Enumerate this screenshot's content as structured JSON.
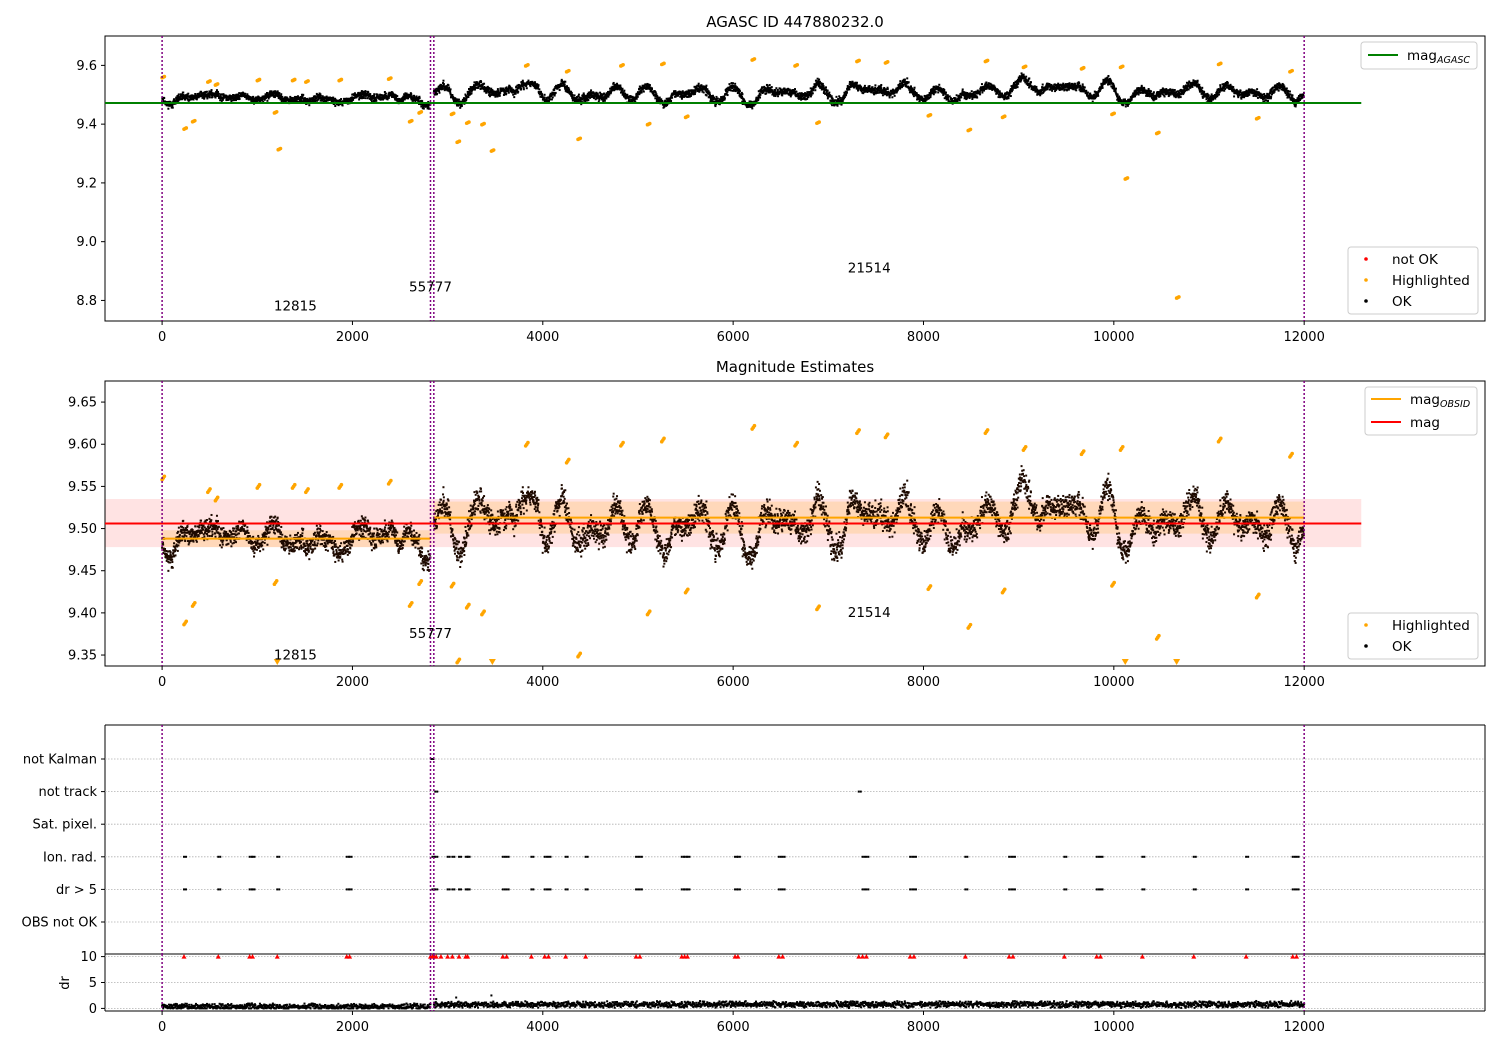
{
  "chart_data": [
    {
      "type": "scatter",
      "title": "AGASC ID 447880232.0",
      "xlim": [
        -600,
        13900
      ],
      "ylim": [
        8.73,
        9.7
      ],
      "xticks": [
        0,
        2000,
        4000,
        6000,
        8000,
        10000,
        12000
      ],
      "yticks": [
        8.8,
        9.0,
        9.2,
        9.4,
        9.6
      ],
      "ytick_labels": [
        "8.8",
        "9.0",
        "9.2",
        "9.4",
        "9.6"
      ],
      "vlines": [
        0,
        2820,
        2855,
        12000
      ],
      "hline": {
        "label": "mag",
        "label_sub": "AGASC",
        "y": 9.472,
        "x_range": [
          -600,
          12600
        ],
        "color": "#008000"
      },
      "segments": [
        {
          "x0": 0,
          "x1": 2820,
          "mean": 9.487,
          "amp": 0.009,
          "noise": 0.011,
          "seed": 11
        },
        {
          "x0": 2855,
          "x1": 12000,
          "mean": 9.512,
          "amp": 0.03,
          "noise": 0.013,
          "seed": 23
        }
      ],
      "highlighted": [
        [
          0,
          9.56
        ],
        [
          230,
          9.385
        ],
        [
          320,
          9.41
        ],
        [
          480,
          9.545
        ],
        [
          560,
          9.535
        ],
        [
          1000,
          9.55
        ],
        [
          1180,
          9.44
        ],
        [
          1220,
          9.315
        ],
        [
          1370,
          9.55
        ],
        [
          1510,
          9.545
        ],
        [
          1860,
          9.55
        ],
        [
          2380,
          9.555
        ],
        [
          2600,
          9.41
        ],
        [
          2700,
          9.44
        ],
        [
          3040,
          9.435
        ],
        [
          3100,
          9.34
        ],
        [
          3200,
          9.405
        ],
        [
          3360,
          9.4
        ],
        [
          3460,
          9.31
        ],
        [
          3820,
          9.6
        ],
        [
          4250,
          9.58
        ],
        [
          4370,
          9.35
        ],
        [
          4820,
          9.6
        ],
        [
          5100,
          9.4
        ],
        [
          5250,
          9.605
        ],
        [
          5500,
          9.425
        ],
        [
          6200,
          9.62
        ],
        [
          6650,
          9.6
        ],
        [
          6880,
          9.405
        ],
        [
          7300,
          9.615
        ],
        [
          7600,
          9.61
        ],
        [
          8050,
          9.43
        ],
        [
          8470,
          9.38
        ],
        [
          8650,
          9.615
        ],
        [
          8830,
          9.425
        ],
        [
          9050,
          9.595
        ],
        [
          9660,
          9.59
        ],
        [
          9980,
          9.435
        ],
        [
          10070,
          9.595
        ],
        [
          10120,
          9.215
        ],
        [
          10450,
          9.37
        ],
        [
          10660,
          8.81
        ],
        [
          11100,
          9.605
        ],
        [
          11500,
          9.42
        ],
        [
          11850,
          9.58
        ]
      ],
      "annotations": [
        {
          "text": "12815",
          "x": 1400,
          "y": 8.765
        },
        {
          "text": "55777",
          "x": 2820,
          "y": 8.83
        },
        {
          "text": "21514",
          "x": 7430,
          "y": 8.895
        }
      ],
      "legend_items": [
        "not OK",
        "Highlighted",
        "OK"
      ],
      "series_colors": {
        "ok": "#000000",
        "highlighted": "#ffa500",
        "not_ok": "#ff0000",
        "vline": "#800080"
      }
    },
    {
      "type": "scatter",
      "title": "Magnitude Estimates",
      "xlim": [
        -600,
        13900
      ],
      "ylim": [
        9.337,
        9.675
      ],
      "xticks": [
        0,
        2000,
        4000,
        6000,
        8000,
        10000,
        12000
      ],
      "yticks": [
        9.35,
        9.4,
        9.45,
        9.5,
        9.55,
        9.6,
        9.65
      ],
      "ytick_labels": [
        "9.35",
        "9.40",
        "9.45",
        "9.50",
        "9.55",
        "9.60",
        "9.65"
      ],
      "vlines": [
        0,
        2820,
        2855,
        12000
      ],
      "mag_line": {
        "label": "mag",
        "y": 9.506,
        "band": [
          9.478,
          9.535
        ],
        "x_range": [
          -600,
          12600
        ],
        "color": "#ff0000"
      },
      "obsid_lines": {
        "label": "mag",
        "label_sub": "OBSID",
        "color": "#ffa500",
        "segments": [
          {
            "x0": 0,
            "x1": 2820,
            "y": 9.488,
            "band": [
              9.478,
              9.498
            ]
          },
          {
            "x0": 2855,
            "x1": 12000,
            "y": 9.513,
            "band": [
              9.494,
              9.532
            ]
          }
        ]
      },
      "highlighted": [
        [
          0,
          9.56
        ],
        [
          230,
          9.388
        ],
        [
          320,
          9.41
        ],
        [
          480,
          9.545
        ],
        [
          560,
          9.535
        ],
        [
          1000,
          9.55
        ],
        [
          1180,
          9.436
        ],
        [
          1370,
          9.55
        ],
        [
          1510,
          9.545
        ],
        [
          1860,
          9.55
        ],
        [
          2380,
          9.555
        ],
        [
          2600,
          9.41
        ],
        [
          2700,
          9.436
        ],
        [
          3040,
          9.433
        ],
        [
          3100,
          9.343
        ],
        [
          3200,
          9.408
        ],
        [
          3360,
          9.4
        ],
        [
          3820,
          9.6
        ],
        [
          4250,
          9.58
        ],
        [
          4370,
          9.35
        ],
        [
          4820,
          9.6
        ],
        [
          5100,
          9.4
        ],
        [
          5250,
          9.605
        ],
        [
          5500,
          9.426
        ],
        [
          6200,
          9.62
        ],
        [
          6650,
          9.6
        ],
        [
          6880,
          9.406
        ],
        [
          7300,
          9.615
        ],
        [
          7600,
          9.61
        ],
        [
          8050,
          9.43
        ],
        [
          8470,
          9.384
        ],
        [
          8650,
          9.615
        ],
        [
          8830,
          9.426
        ],
        [
          9050,
          9.595
        ],
        [
          9660,
          9.59
        ],
        [
          9980,
          9.434
        ],
        [
          10070,
          9.595
        ],
        [
          10450,
          9.371
        ],
        [
          11100,
          9.605
        ],
        [
          11500,
          9.42
        ],
        [
          11850,
          9.587
        ]
      ],
      "offscale_markers": [
        1210,
        3470,
        10120,
        10660
      ],
      "annotations": [
        {
          "text": "12815",
          "x": 1400,
          "y": 9.345
        },
        {
          "text": "55777",
          "x": 2820,
          "y": 9.37
        },
        {
          "text": "21514",
          "x": 7430,
          "y": 9.395
        }
      ],
      "legend_lines": [
        "mag",
        "mag"
      ],
      "legend_points": [
        "Highlighted",
        "OK"
      ]
    },
    {
      "type": "scatter",
      "title": "",
      "xlim": [
        -600,
        13900
      ],
      "categories": [
        "not Kalman",
        "not track",
        "Sat. pixel.",
        "Ion. rad.",
        "dr > 5",
        "OBS not OK"
      ],
      "vlines": [
        0,
        2820,
        2855,
        12000
      ],
      "flag_points": {
        "not Kalman": [
          2830
        ],
        "not track": [
          2870,
          7320
        ],
        "Sat. pixel.": [],
        "Ion. rad.": [
          230,
          590,
          920,
          950,
          1210,
          1940,
          1970,
          2840,
          2870,
          3000,
          3050,
          3120,
          3190,
          3210,
          3580,
          3620,
          3880,
          4020,
          4060,
          4240,
          4450,
          4980,
          5020,
          5460,
          5490,
          5520,
          6020,
          6050,
          6480,
          6520,
          7360,
          7400,
          7860,
          7900,
          8440,
          8900,
          8940,
          9480,
          9820,
          9860,
          10300,
          10840,
          11390,
          11880,
          11920
        ],
        "dr > 5": [
          230,
          590,
          920,
          950,
          1210,
          1940,
          1970,
          2840,
          2870,
          3000,
          3050,
          3120,
          3190,
          3210,
          3580,
          3620,
          3880,
          4020,
          4060,
          4240,
          4450,
          4980,
          5020,
          5460,
          5490,
          5520,
          6020,
          6050,
          6480,
          6520,
          7360,
          7400,
          7860,
          7900,
          8440,
          8900,
          8940,
          9480,
          9820,
          9860,
          10300,
          10840,
          11390,
          11880,
          11920
        ],
        "OBS not OK": []
      }
    },
    {
      "type": "scatter",
      "title": "",
      "ylabel": "dr",
      "xlim": [
        -600,
        13900
      ],
      "ylim": [
        -0.5,
        10.5
      ],
      "xticks": [
        0,
        2000,
        4000,
        6000,
        8000,
        10000,
        12000
      ],
      "yticks": [
        0,
        5,
        10
      ],
      "ytick_labels": [
        "0",
        "5",
        "10"
      ],
      "vlines": [
        0,
        2820,
        2855,
        12000
      ],
      "clipped_at": 10,
      "clipped_x": [
        230,
        590,
        920,
        950,
        1210,
        1940,
        1970,
        2820,
        2840,
        2860,
        2880,
        2930,
        3000,
        3050,
        3120,
        3190,
        3210,
        3580,
        3620,
        3880,
        4020,
        4060,
        4240,
        4450,
        4980,
        5020,
        5460,
        5490,
        5520,
        6020,
        6050,
        6480,
        6520,
        7320,
        7360,
        7400,
        7860,
        7900,
        8440,
        8900,
        8940,
        9480,
        9820,
        9860,
        10300,
        10840,
        11390,
        11880,
        11920
      ],
      "typical_dr": 0.7
    }
  ]
}
